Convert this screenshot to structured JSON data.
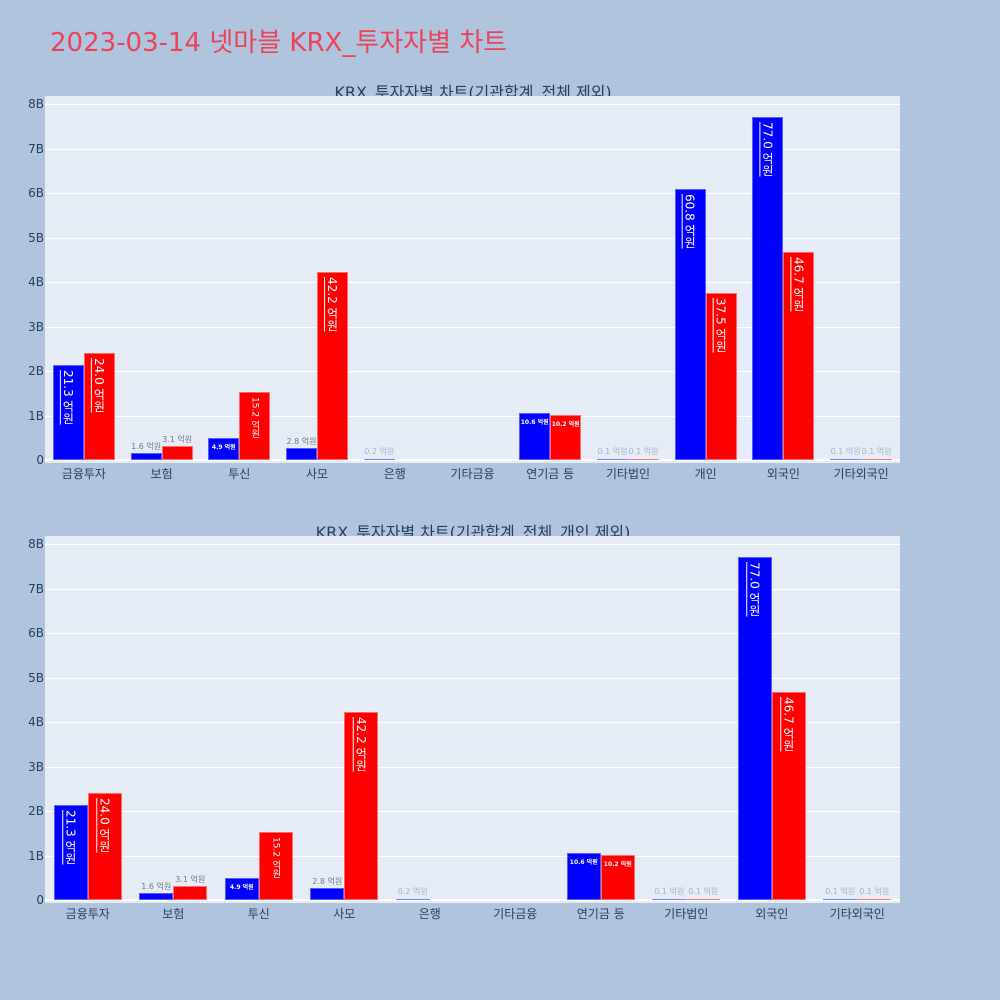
{
  "page_title": "2023-03-14 넷마블 KRX_투자자별 차트",
  "colors": {
    "buy": "#0000ff",
    "sell": "#ff0000",
    "title": "#e8455d",
    "background": "#b0c4de",
    "plot_bg": "#e5ecf6"
  },
  "y_ticks": [
    "0",
    "1B",
    "2B",
    "3B",
    "4B",
    "5B",
    "6B",
    "7B",
    "8B"
  ],
  "chart_data": [
    {
      "type": "bar",
      "title": "KRX_투자자별 차트(기관합계_전체 제외)",
      "categories": [
        "금융투자",
        "보험",
        "투신",
        "사모",
        "은행",
        "기타금융",
        "연기금 등",
        "기타법인",
        "개인",
        "외국인",
        "기타외국인"
      ],
      "series": [
        {
          "name": "blue",
          "color": "#0000ff",
          "values": [
            21.3,
            1.6,
            4.9,
            2.8,
            0.2,
            0,
            10.6,
            0.1,
            60.8,
            77.0,
            0.1
          ],
          "labels": [
            "21.3 억원",
            "1.6 억원",
            "4.9 억원",
            "2.8 억원",
            "0.2 억원",
            "",
            "10.6 억원",
            "0.1 억원",
            "60.8 억원",
            "77.0 억원",
            "0.1 억원"
          ]
        },
        {
          "name": "red",
          "color": "#ff0000",
          "values": [
            24.0,
            3.1,
            15.2,
            42.2,
            0,
            0,
            10.2,
            0.1,
            37.5,
            46.7,
            0.1
          ],
          "labels": [
            "24.0 억원",
            "3.1 억원",
            "15.2 억원",
            "42.2 억원",
            "",
            "",
            "10.2 억원",
            "0.1 억원",
            "37.5 억원",
            "46.7 억원",
            "0.1 억원"
          ]
        }
      ],
      "value_unit": "억원",
      "xlabel": "",
      "ylabel": "",
      "ylim": [
        0,
        8000000000
      ],
      "y_tick_labels": [
        "0",
        "1B",
        "2B",
        "3B",
        "4B",
        "5B",
        "6B",
        "7B",
        "8B"
      ],
      "grid": true
    },
    {
      "type": "bar",
      "title": "KRX_투자자별 차트(기관합계_전체_개인 제외)",
      "categories": [
        "금융투자",
        "보험",
        "투신",
        "사모",
        "은행",
        "기타금융",
        "연기금 등",
        "기타법인",
        "외국인",
        "기타외국인"
      ],
      "series": [
        {
          "name": "blue",
          "color": "#0000ff",
          "values": [
            21.3,
            1.6,
            4.9,
            2.8,
            0.2,
            0,
            10.6,
            0.1,
            77.0,
            0.1
          ],
          "labels": [
            "21.3 억원",
            "1.6 억원",
            "4.9 억원",
            "2.8 억원",
            "0.2 억원",
            "",
            "10.6 억원",
            "0.1 억원",
            "77.0 억원",
            "0.1 억원"
          ]
        },
        {
          "name": "red",
          "color": "#ff0000",
          "values": [
            24.0,
            3.1,
            15.2,
            42.2,
            0,
            0,
            10.2,
            0.1,
            46.7,
            0.1
          ],
          "labels": [
            "24.0 억원",
            "3.1 억원",
            "15.2 억원",
            "42.2 억원",
            "",
            "",
            "10.2 억원",
            "0.1 억원",
            "46.7 억원",
            "0.1 억원"
          ]
        }
      ],
      "value_unit": "억원",
      "xlabel": "",
      "ylabel": "",
      "ylim": [
        0,
        8000000000
      ],
      "y_tick_labels": [
        "0",
        "1B",
        "2B",
        "3B",
        "4B",
        "5B",
        "6B",
        "7B",
        "8B"
      ],
      "grid": true
    }
  ]
}
